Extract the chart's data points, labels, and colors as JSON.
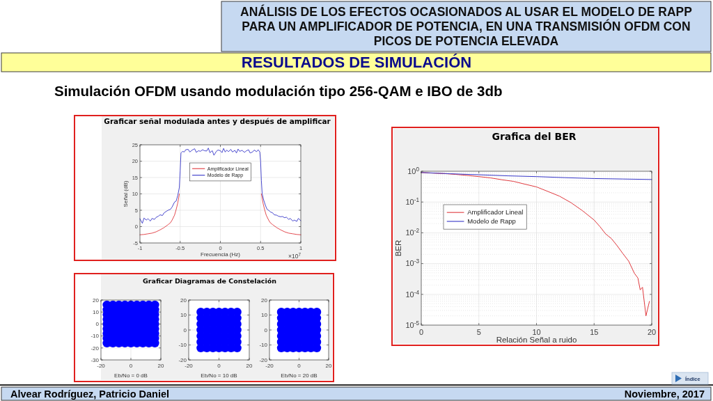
{
  "chart_data": [
    {
      "type": "other",
      "title": "ANÁLISIS DE LOS EFECTOS OCASIONADOS AL USAR EL MODELO DE RAPP PARA UN AMPLIFICADOR DE POTENCIA, EN UNA TRANSMISIÓN OFDM CON PICOS DE POTENCIA ELEVADA",
      "subtitle": "RESULTADOS DE SIMULACIÓN",
      "annotations": [
        "Simulación OFDM usando modulación tipo 256-QAM e IBO de 3db",
        "Alvear Rodríguez, Patricio Daniel",
        "Noviembre, 2017",
        "Índice"
      ]
    },
    {
      "type": "line",
      "title": "Graficar señal modulada antes y después de amplificar",
      "xlabel": "Frecuencia (Hz)",
      "ylabel": "Señal (dB)",
      "annotations": [
        "×10$^{7}$"
      ],
      "xlim": [
        -1,
        1
      ],
      "xticks": [
        -1,
        -0.5,
        0,
        0.5,
        1
      ],
      "ylim": [
        -5,
        25
      ],
      "yticks": [
        -5,
        0,
        5,
        10,
        15,
        20,
        25
      ],
      "grid": true,
      "legend": "top",
      "series": [
        {
          "name": "Amplificador Lineal",
          "color": "#e0393e",
          "x": [
            -1,
            -0.95,
            -0.9,
            -0.85,
            -0.8,
            -0.75,
            -0.7,
            -0.65,
            -0.62,
            -0.6,
            -0.57,
            -0.55,
            -0.53,
            -0.51,
            0,
            0.51,
            0.53,
            0.55,
            0.57,
            0.6,
            0.62,
            0.65,
            0.7,
            0.75,
            0.8,
            0.85,
            0.9,
            0.95,
            1
          ],
          "values": [
            -2.5,
            -2.4,
            -2.2,
            -2.0,
            -1.6,
            -1.0,
            -0.3,
            0.6,
            1.2,
            2.0,
            3.5,
            5.2,
            7.2,
            10,
            null,
            10,
            7.2,
            5.2,
            3.5,
            2.0,
            1.2,
            0.6,
            -0.3,
            -1.0,
            -1.6,
            -2.0,
            -2.2,
            -2.4,
            -2.5
          ]
        },
        {
          "name": "Modelo de Rapp",
          "color": "#3535c8",
          "x": [
            -1,
            -0.97,
            -0.95,
            -0.92,
            -0.9,
            -0.87,
            -0.85,
            -0.82,
            -0.8,
            -0.77,
            -0.75,
            -0.72,
            -0.7,
            -0.67,
            -0.65,
            -0.62,
            -0.6,
            -0.57,
            -0.55,
            -0.53,
            -0.51,
            -0.5,
            -0.49,
            -0.47,
            -0.45,
            -0.43,
            -0.4,
            -0.38,
            -0.35,
            -0.32,
            -0.3,
            -0.27,
            -0.25,
            -0.22,
            -0.2,
            -0.17,
            -0.15,
            -0.13,
            -0.1,
            -0.08,
            -0.05,
            -0.03,
            0,
            0.02,
            0.04,
            0.06,
            0.08,
            0.1,
            0.13,
            0.15,
            0.18,
            0.2,
            0.22,
            0.24,
            0.27,
            0.3,
            0.32,
            0.35,
            0.37,
            0.4,
            0.42,
            0.45,
            0.47,
            0.49,
            0.5,
            0.51,
            0.52,
            0.54,
            0.56,
            0.58,
            0.6,
            0.62,
            0.65,
            0.67,
            0.7,
            0.72,
            0.75,
            0.77,
            0.8,
            0.82,
            0.85,
            0.87,
            0.9,
            0.92,
            0.95,
            0.97,
            1
          ],
          "values": [
            2.4,
            1.0,
            2.6,
            2.0,
            2.4,
            1.7,
            2.5,
            2.2,
            2.8,
            3.2,
            3.6,
            3.4,
            4.2,
            4.7,
            5.0,
            5.3,
            6.0,
            7.5,
            7.8,
            9.5,
            12,
            17,
            22.5,
            23.0,
            22.8,
            23.5,
            23.6,
            22.8,
            23.4,
            23.8,
            22.7,
            23.2,
            23.0,
            23.5,
            23.2,
            23.1,
            24.0,
            22.6,
            23.2,
            21.8,
            23.0,
            23.4,
            23.2,
            22.6,
            23.9,
            22.8,
            23.4,
            22.9,
            23.6,
            22.8,
            23.3,
            22.5,
            23.7,
            23.0,
            23.3,
            22.7,
            23.1,
            23.5,
            22.5,
            22.8,
            23.4,
            22.9,
            23.5,
            22.8,
            20,
            14,
            10,
            8,
            6.5,
            5.3,
            5.0,
            4.5,
            4.2,
            3.6,
            3.5,
            3.2,
            3.0,
            3.1,
            2.7,
            2.9,
            2.2,
            2.5,
            1.7,
            2.0,
            1.6,
            2.5,
            1.8
          ]
        }
      ]
    },
    {
      "type": "line",
      "title": "Grafica del BER",
      "xlabel": "Relación Señal a ruido",
      "ylabel": "BER",
      "log": "y",
      "xlim": [
        0,
        20
      ],
      "xticks": [
        0,
        5,
        10,
        15,
        20
      ],
      "ylim": [
        1e-05,
        1
      ],
      "yticks": [
        {
          "value": 1e-05,
          "label": "10$^{-5}$"
        },
        {
          "value": 0.0001,
          "label": "10$^{-4}$"
        },
        {
          "value": 0.001,
          "label": "10$^{-3}$"
        },
        {
          "value": 0.01,
          "label": "10$^{-2}$"
        },
        {
          "value": 0.1,
          "label": "10$^{-1}$"
        },
        {
          "value": 1,
          "label": "10$^{0}$"
        }
      ],
      "grid": true,
      "legend": "top left",
      "series": [
        {
          "name": "Amplificador Lineal",
          "color": "#e0393e",
          "x": [
            0,
            1,
            2,
            3,
            4,
            5,
            6,
            7,
            8,
            9,
            10,
            11,
            12,
            13,
            14,
            15,
            15.5,
            16,
            16.5,
            17,
            17.5,
            18,
            18.5,
            18.8,
            19,
            19.2,
            19.5,
            19.8
          ],
          "values": [
            0.91,
            0.87,
            0.84,
            0.79,
            0.73,
            0.67,
            0.61,
            0.53,
            0.47,
            0.38,
            0.31,
            0.22,
            0.155,
            0.095,
            0.052,
            0.026,
            0.016,
            0.0092,
            0.0065,
            0.0038,
            0.0021,
            0.0012,
            0.00048,
            0.00034,
            0.00014,
            0.00017,
            2e-05,
            5.9e-05
          ]
        },
        {
          "name": "Modelo de Rapp",
          "color": "#3535c8",
          "x": [
            0,
            2.5,
            5,
            7.5,
            10,
            12.5,
            15,
            17.5,
            20
          ],
          "values": [
            0.91,
            0.83,
            0.77,
            0.71,
            0.67,
            0.62,
            0.58,
            0.56,
            0.54
          ]
        }
      ]
    },
    {
      "type": "scatter",
      "xlabel": "Eb/No = 0 dB",
      "xlim": [
        -20,
        20
      ],
      "xticks": [
        -20,
        0,
        20
      ],
      "ylim": [
        -30,
        20
      ],
      "yticks": [
        -30,
        -20,
        -10,
        0,
        10,
        20
      ],
      "grid": true,
      "marker": "circle",
      "series": [
        {
          "color": "#0000ff",
          "x": [
            -16,
            -12,
            -8,
            -4,
            0,
            4,
            8,
            12,
            16,
            -16,
            -12,
            -8,
            -4,
            0,
            4,
            8,
            12,
            16,
            -16,
            -12,
            -8,
            -4,
            0,
            4,
            8,
            12,
            16,
            -16,
            -12,
            -8,
            -4,
            0,
            4,
            8,
            12,
            16,
            -16,
            -12,
            -8,
            -4,
            0,
            4,
            8,
            12,
            16,
            -16,
            -12,
            -8,
            -4,
            0,
            4,
            8,
            12,
            16,
            -16,
            -12,
            -8,
            -4,
            0,
            4,
            8,
            12,
            16,
            -16,
            -12,
            -8,
            -4,
            0,
            4,
            8,
            12,
            16,
            -16,
            -12,
            -8,
            -4,
            0,
            4,
            8,
            12,
            16
          ],
          "values": [
            -16,
            -16,
            -16,
            -16,
            -16,
            -16,
            -16,
            -16,
            -16,
            -12,
            -12,
            -12,
            -12,
            -12,
            -12,
            -12,
            -12,
            -12,
            -8,
            -8,
            -8,
            -8,
            -8,
            -8,
            -8,
            -8,
            -8,
            -4,
            -4,
            -4,
            -4,
            -4,
            -4,
            -4,
            -4,
            -4,
            0,
            0,
            0,
            0,
            0,
            0,
            0,
            0,
            0,
            4,
            4,
            4,
            4,
            4,
            4,
            4,
            4,
            4,
            8,
            8,
            8,
            8,
            8,
            8,
            8,
            8,
            8,
            12,
            12,
            12,
            12,
            12,
            12,
            12,
            12,
            12,
            16,
            16,
            16,
            16,
            16,
            16,
            16,
            16,
            16
          ]
        }
      ]
    },
    {
      "type": "scatter",
      "title": "Graficar Diagramas de Constelación",
      "xlabel": "Eb/No = 10 dB",
      "xlim": [
        -20,
        20
      ],
      "xticks": [
        -20,
        0,
        20
      ],
      "ylim": [
        -20,
        20
      ],
      "yticks": [
        -20,
        -10,
        0,
        10,
        20
      ],
      "grid": true,
      "marker": "circle",
      "series": [
        {
          "color": "#0000ff",
          "x": [
            -12,
            -8,
            -4,
            0,
            4,
            8,
            12,
            -12,
            -8,
            -4,
            0,
            4,
            8,
            12,
            -12,
            -8,
            -4,
            0,
            4,
            8,
            12,
            -12,
            -8,
            -4,
            0,
            4,
            8,
            12,
            -12,
            -8,
            -4,
            0,
            4,
            8,
            12,
            -12,
            -8,
            -4,
            0,
            4,
            8,
            12,
            -12,
            -8,
            -4,
            0,
            4,
            8,
            12
          ],
          "values": [
            -12,
            -12,
            -12,
            -12,
            -12,
            -12,
            -12,
            -8,
            -8,
            -8,
            -8,
            -8,
            -8,
            -8,
            -4,
            -4,
            -4,
            -4,
            -4,
            -4,
            -4,
            0,
            0,
            0,
            0,
            0,
            0,
            0,
            4,
            4,
            4,
            4,
            4,
            4,
            4,
            8,
            8,
            8,
            8,
            8,
            8,
            8,
            12,
            12,
            12,
            12,
            12,
            12,
            12
          ]
        }
      ]
    },
    {
      "type": "scatter",
      "xlabel": "Eb/No = 20 dB",
      "xlim": [
        -20,
        20
      ],
      "xticks": [
        -20,
        0,
        20
      ],
      "ylim": [
        -20,
        20
      ],
      "yticks": [
        -20,
        -10,
        0,
        10,
        20
      ],
      "grid": true,
      "marker": "circle",
      "series": [
        {
          "color": "#0000ff",
          "x": [
            -12,
            -8,
            -4,
            0,
            4,
            8,
            12,
            -12,
            -8,
            -4,
            0,
            4,
            8,
            12,
            -12,
            -8,
            -4,
            0,
            4,
            8,
            12,
            -12,
            -8,
            -4,
            0,
            4,
            8,
            12,
            -12,
            -8,
            -4,
            0,
            4,
            8,
            12,
            -12,
            -8,
            -4,
            0,
            4,
            8,
            12,
            -12,
            -8,
            -4,
            0,
            4,
            8,
            12
          ],
          "values": [
            -12,
            -12,
            -12,
            -12,
            -12,
            -12,
            -12,
            -8,
            -8,
            -8,
            -8,
            -8,
            -8,
            -8,
            -4,
            -4,
            -4,
            -4,
            -4,
            -4,
            -4,
            0,
            0,
            0,
            0,
            0,
            0,
            0,
            4,
            4,
            4,
            4,
            4,
            4,
            4,
            8,
            8,
            8,
            8,
            8,
            8,
            8,
            12,
            12,
            12,
            12,
            12,
            12,
            12
          ]
        }
      ]
    }
  ]
}
